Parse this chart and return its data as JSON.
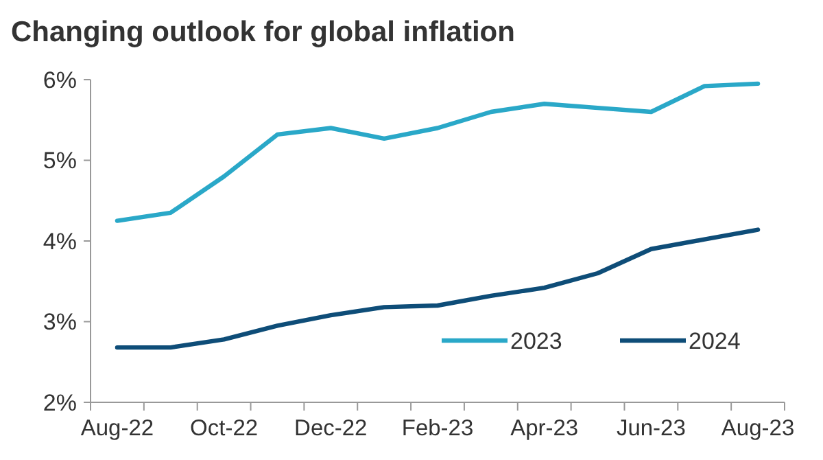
{
  "chart_data": {
    "type": "line",
    "title": "Changing outlook for global inflation",
    "categories": [
      "Aug-22",
      null,
      "Oct-22",
      null,
      "Dec-22",
      null,
      "Feb-23",
      null,
      "Apr-23",
      null,
      "Jun-23",
      null,
      "Aug-23"
    ],
    "series": [
      {
        "name": "2023",
        "color": "#2aa8c8",
        "values": [
          4.25,
          4.35,
          4.8,
          5.32,
          5.4,
          5.27,
          5.4,
          5.6,
          5.7,
          5.65,
          5.6,
          5.92,
          5.95
        ]
      },
      {
        "name": "2024",
        "color": "#0e4d78",
        "values": [
          2.68,
          2.68,
          2.78,
          2.95,
          3.08,
          3.18,
          3.2,
          3.32,
          3.42,
          3.6,
          3.9,
          4.02,
          4.14
        ]
      }
    ],
    "ylim": [
      2,
      6
    ],
    "yticks": [
      {
        "value": 2,
        "label": "2%"
      },
      {
        "value": 3,
        "label": "3%"
      },
      {
        "value": 4,
        "label": "4%"
      },
      {
        "value": 5,
        "label": "5%"
      },
      {
        "value": 6,
        "label": "6%"
      }
    ],
    "grid": false,
    "legend": "bottom right",
    "marker": "none",
    "line_style": "solid"
  }
}
